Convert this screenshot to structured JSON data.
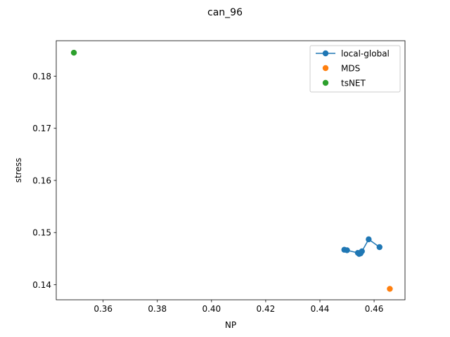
{
  "chart_data": {
    "type": "scatter",
    "title": "can_96",
    "xlabel": "NP",
    "ylabel": "stress",
    "xlim": [
      0.3427,
      0.4714
    ],
    "ylim": [
      0.1371,
      0.1868
    ],
    "xticks": [
      0.36,
      0.38,
      0.4,
      0.42,
      0.44,
      0.46
    ],
    "xtick_labels": [
      "0.36",
      "0.38",
      "0.40",
      "0.42",
      "0.44",
      "0.46"
    ],
    "yticks": [
      0.14,
      0.15,
      0.16,
      0.17,
      0.18
    ],
    "ytick_labels": [
      "0.14",
      "0.15",
      "0.16",
      "0.17",
      "0.18"
    ],
    "grid": false,
    "legend_position": "top-right",
    "series": [
      {
        "name": "local-global",
        "style": "line-marker",
        "color": "#1f77b4",
        "points": [
          {
            "x": 0.449,
            "y": 0.1467
          },
          {
            "x": 0.45,
            "y": 0.1466
          },
          {
            "x": 0.454,
            "y": 0.1461
          },
          {
            "x": 0.4545,
            "y": 0.1459
          },
          {
            "x": 0.455,
            "y": 0.146
          },
          {
            "x": 0.4555,
            "y": 0.1464
          },
          {
            "x": 0.458,
            "y": 0.1487
          },
          {
            "x": 0.462,
            "y": 0.1472
          }
        ]
      },
      {
        "name": "MDS",
        "style": "marker",
        "color": "#ff7f0e",
        "points": [
          {
            "x": 0.4658,
            "y": 0.1392
          }
        ]
      },
      {
        "name": "tsNET",
        "style": "marker",
        "color": "#2ca02c",
        "points": [
          {
            "x": 0.3492,
            "y": 0.1845
          }
        ]
      }
    ]
  }
}
